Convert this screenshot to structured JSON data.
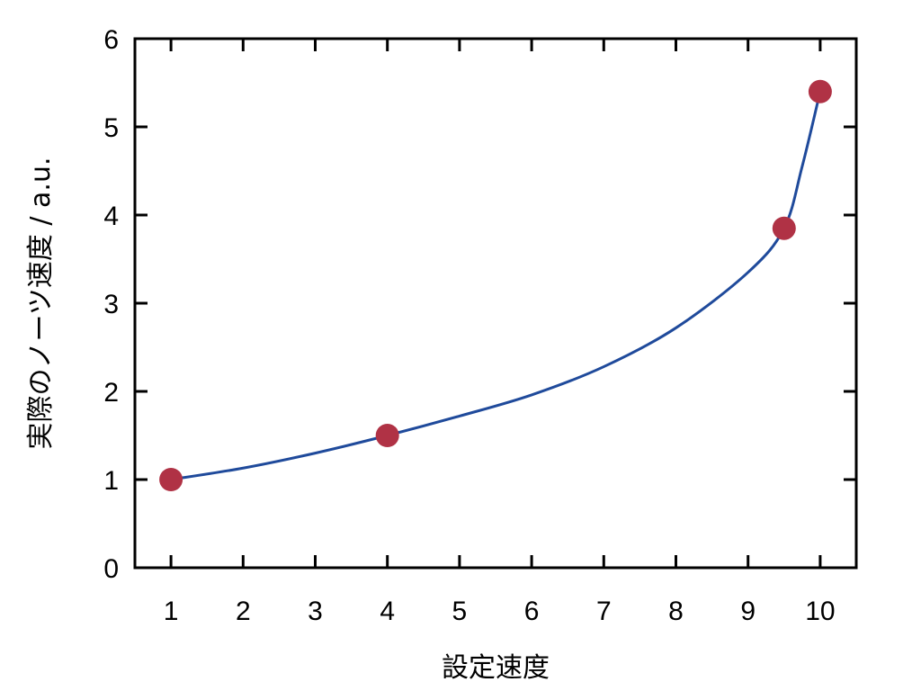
{
  "chart_data": {
    "type": "line",
    "title": "",
    "xlabel": "設定速度",
    "ylabel": "実際のノーツ速度 / a.u.",
    "xlim": [
      0.5,
      10.5
    ],
    "ylim": [
      0,
      6
    ],
    "xticks": [
      1,
      2,
      3,
      4,
      5,
      6,
      7,
      8,
      9,
      10
    ],
    "yticks": [
      0,
      1,
      2,
      3,
      4,
      5,
      6
    ],
    "grid": false,
    "series": [
      {
        "kind": "scatter",
        "color": "#b03245",
        "x": [
          1,
          4,
          9.5,
          10
        ],
        "y": [
          1,
          1.5,
          3.85,
          5.4
        ]
      },
      {
        "kind": "line",
        "color": "#1f4a9b",
        "x": [
          1,
          2,
          3,
          4,
          5,
          6,
          7,
          8,
          9,
          9.5,
          9.75,
          10
        ],
        "y": [
          1,
          1.13,
          1.3,
          1.5,
          1.72,
          1.96,
          2.28,
          2.72,
          3.35,
          3.85,
          4.55,
          5.4
        ]
      }
    ]
  }
}
